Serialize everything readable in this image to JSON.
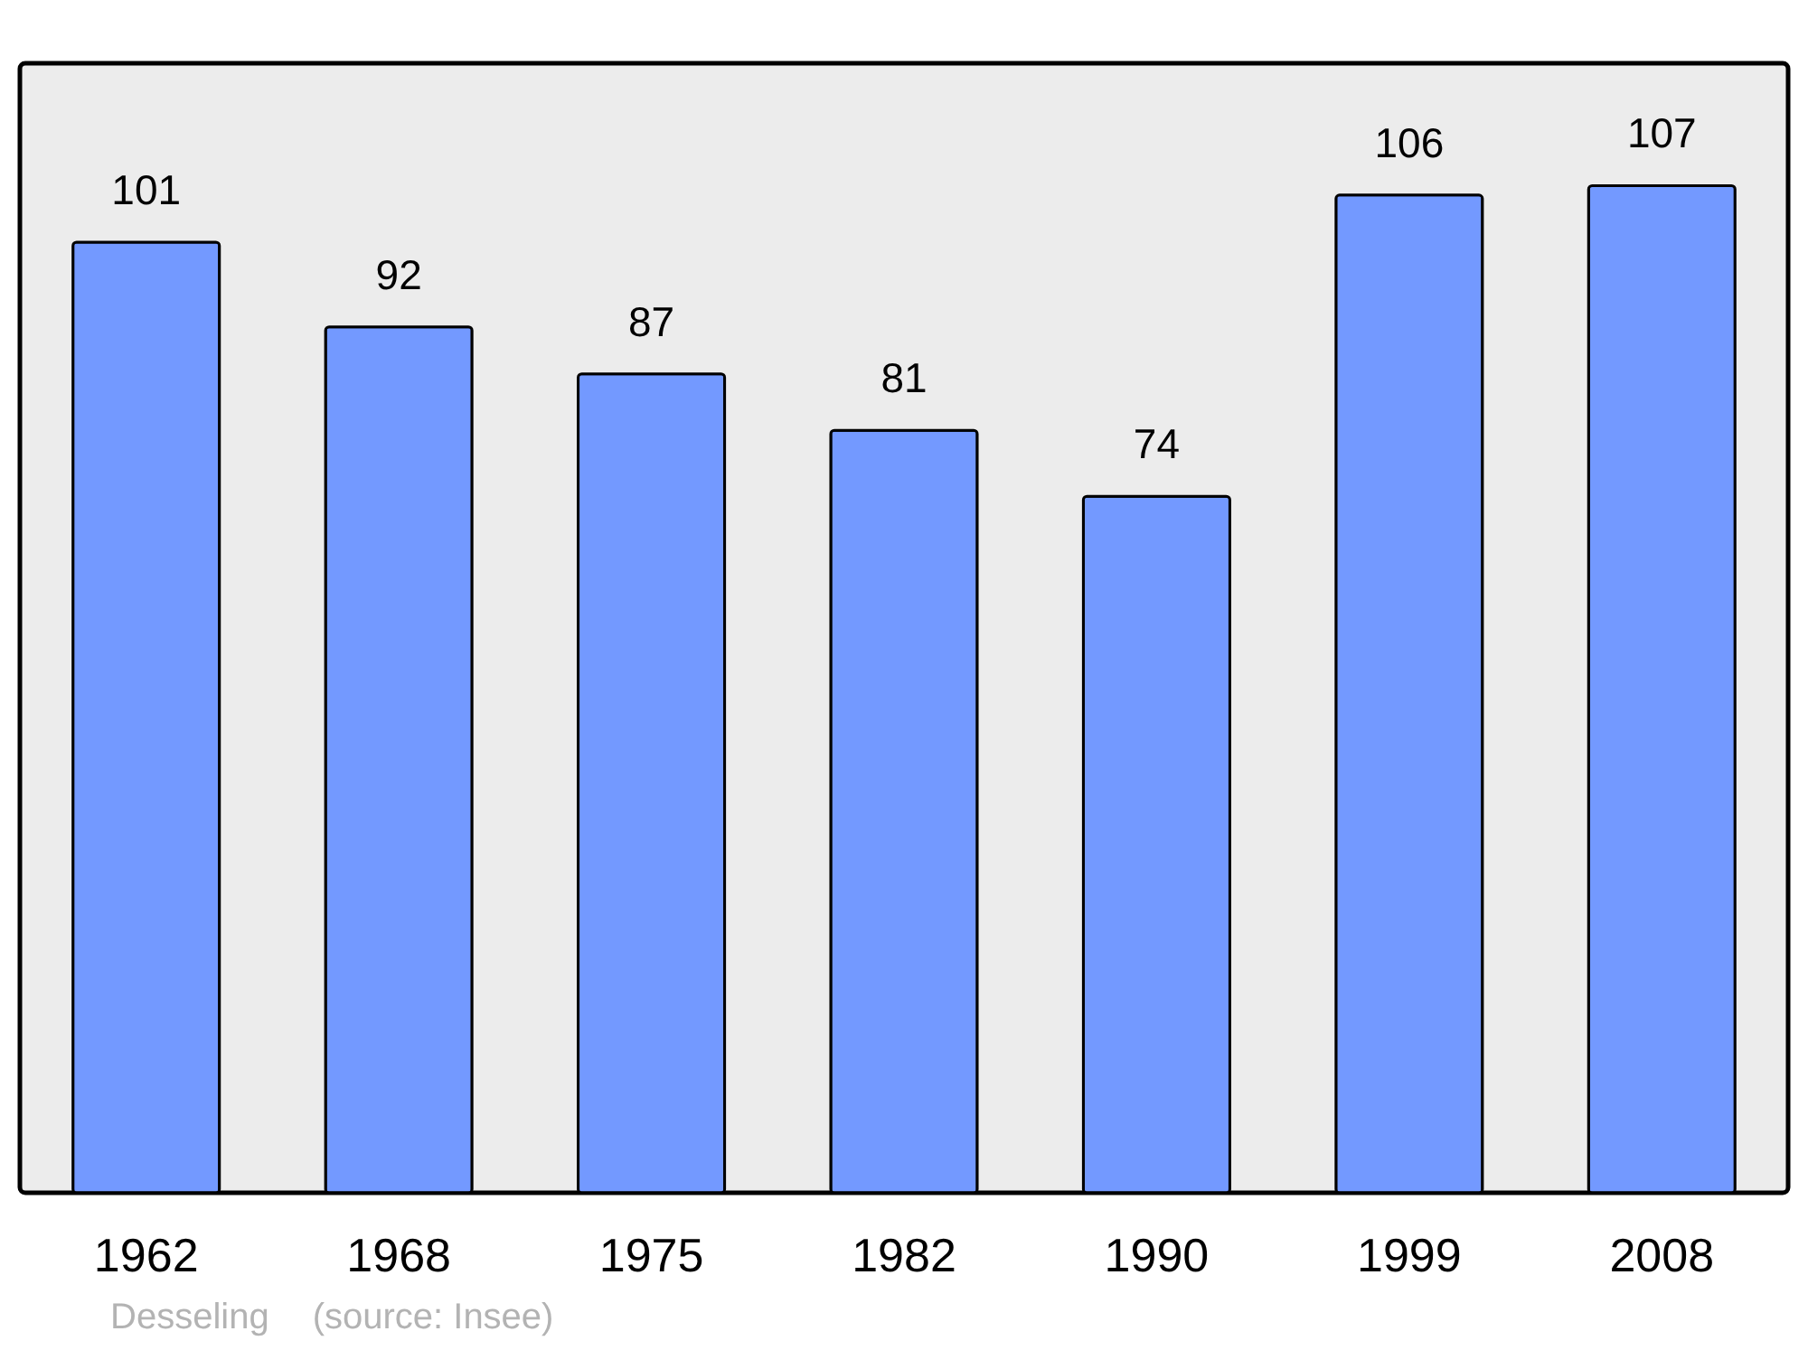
{
  "chart_data": {
    "type": "bar",
    "categories": [
      "1962",
      "1968",
      "1975",
      "1982",
      "1990",
      "1999",
      "2008"
    ],
    "values": [
      101,
      92,
      87,
      81,
      74,
      106,
      107
    ],
    "color": "#7399ff",
    "data_labels": true,
    "grid": false,
    "annotations": [
      "Desseling",
      "(source: Insee)"
    ]
  }
}
